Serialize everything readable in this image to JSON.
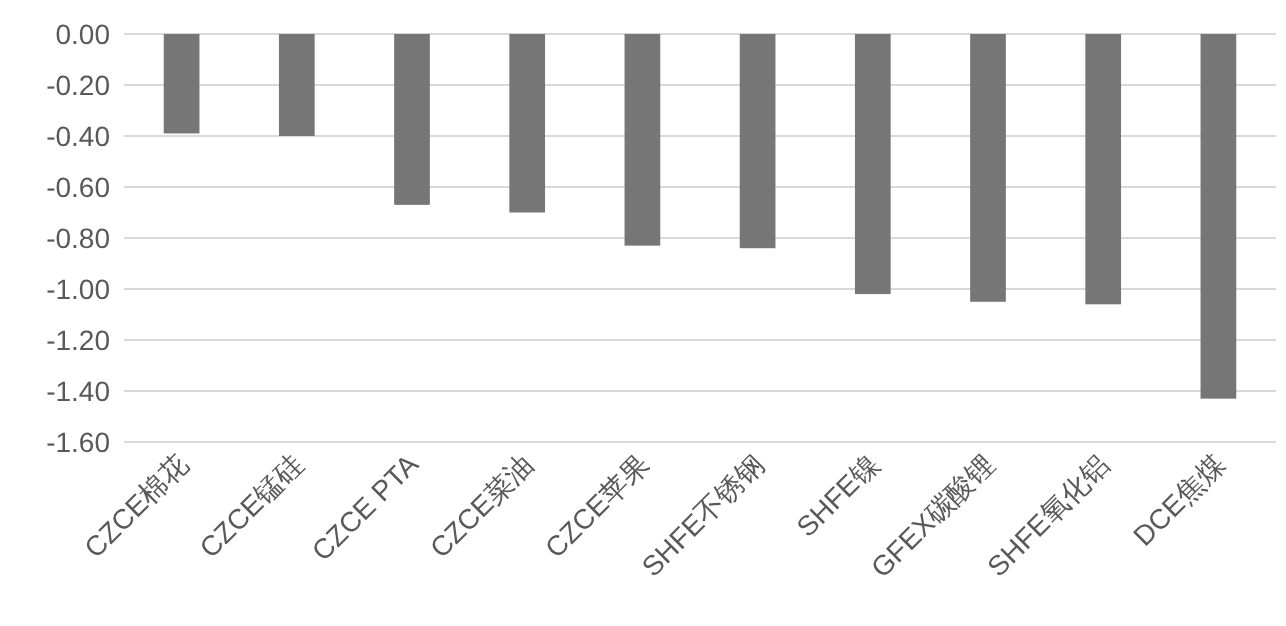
{
  "chart_data": {
    "type": "bar",
    "categories": [
      "CZCE棉花",
      "CZCE锰硅",
      "CZCE PTA",
      "CZCE菜油",
      "CZCE苹果",
      "SHFE不锈钢",
      "SHFE镍",
      "GFEX碳酸锂",
      "SHFE氧化铝",
      "DCE焦煤"
    ],
    "values": [
      -0.39,
      -0.4,
      -0.67,
      -0.7,
      -0.83,
      -0.84,
      -1.02,
      -1.05,
      -1.06,
      -1.43
    ],
    "color": "#767676",
    "ylim": [
      -1.6,
      0
    ],
    "yticks": [
      {
        "value": 0,
        "label": "0.00"
      },
      {
        "value": -0.2,
        "label": "-0.20"
      },
      {
        "value": -0.4,
        "label": "-0.40"
      },
      {
        "value": -0.6,
        "label": "-0.60"
      },
      {
        "value": -0.8,
        "label": "-0.80"
      },
      {
        "value": -1.0,
        "label": "-1.00"
      },
      {
        "value": -1.2,
        "label": "-1.20"
      },
      {
        "value": -1.4,
        "label": "-1.40"
      },
      {
        "value": -1.6,
        "label": "-1.60"
      }
    ],
    "grid": "y"
  }
}
